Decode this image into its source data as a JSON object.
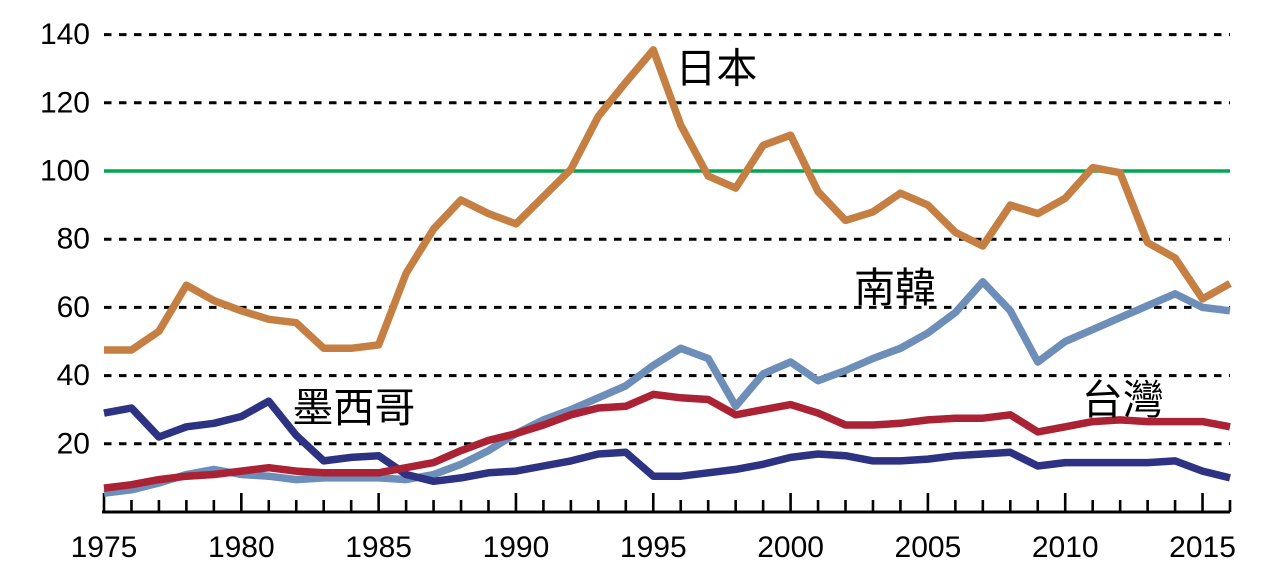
{
  "chart_data": {
    "type": "line",
    "background": "#FFFFFF",
    "axis_color": "#000000",
    "grid": "horizontal-dashed",
    "xlim": [
      1975,
      2016
    ],
    "ylim": [
      0,
      148
    ],
    "yticks": [
      20,
      40,
      60,
      80,
      100,
      120,
      140
    ],
    "xticks_labeled": [
      1975,
      1980,
      1985,
      1990,
      1995,
      2000,
      2005,
      2010,
      2015
    ],
    "xticks_minor_every": 1,
    "reference_line": {
      "value": 100,
      "color": "#00A651"
    },
    "x": [
      1975,
      1976,
      1977,
      1978,
      1979,
      1980,
      1981,
      1982,
      1983,
      1984,
      1985,
      1986,
      1987,
      1988,
      1989,
      1990,
      1991,
      1992,
      1993,
      1994,
      1995,
      1996,
      1997,
      1998,
      1999,
      2000,
      2001,
      2002,
      2003,
      2004,
      2005,
      2006,
      2007,
      2008,
      2009,
      2010,
      2011,
      2012,
      2013,
      2014,
      2015,
      2016
    ],
    "series": [
      {
        "id": "south-korea",
        "label": "南韓",
        "color": "#6C8EB9",
        "values": [
          5.5,
          6.5,
          8.5,
          11,
          12.5,
          11,
          10.5,
          9.5,
          10,
          10,
          10,
          9.5,
          11,
          14,
          18,
          23,
          27,
          30,
          33.5,
          37,
          43,
          48,
          45,
          31,
          40.5,
          44,
          38.5,
          41.5,
          45,
          48,
          52.5,
          58.5,
          67.5,
          59,
          44,
          50,
          53.5,
          57,
          60.5,
          64,
          60,
          59
        ]
      },
      {
        "id": "mexico",
        "label": "墨西哥",
        "color": "#2E3282",
        "values": [
          29,
          30.5,
          22,
          25,
          26,
          28,
          32.5,
          22.5,
          15,
          16,
          16.5,
          11,
          9,
          10,
          11.5,
          12,
          13.5,
          15,
          17,
          17.5,
          10.5,
          10.5,
          11.5,
          12.5,
          14,
          16,
          17,
          16.5,
          15,
          15,
          15.5,
          16.5,
          17,
          17.5,
          13.5,
          14.5,
          14.5,
          14.5,
          14.5,
          15,
          12,
          10
        ]
      },
      {
        "id": "taiwan",
        "label": "台灣",
        "color": "#AA2233",
        "values": [
          7,
          8,
          9.5,
          10.5,
          11,
          12,
          13,
          12,
          11.5,
          11.5,
          11.5,
          13,
          14.5,
          18,
          21,
          23,
          25.5,
          28.5,
          30.5,
          31,
          34.5,
          33.5,
          33,
          28.5,
          30,
          31.5,
          29,
          25.5,
          25.5,
          26,
          27,
          27.5,
          27.5,
          28.5,
          23.5,
          25,
          26.5,
          27,
          26.5,
          26.5,
          26.5,
          25
        ]
      },
      {
        "id": "japan",
        "label": "日本",
        "color": "#C67F43",
        "values": [
          47.5,
          47.5,
          53,
          66.5,
          62,
          59,
          56.5,
          55.5,
          48,
          48,
          49,
          70,
          83,
          91.5,
          87.5,
          84.5,
          92.5,
          100.5,
          116,
          126,
          135.5,
          113.5,
          98.5,
          95,
          107.5,
          110.5,
          94,
          85.5,
          88,
          93.5,
          90,
          82,
          78,
          90,
          87.5,
          92,
          101,
          99.5,
          79,
          74.5,
          62.5,
          67
        ]
      }
    ],
    "series_labels": [
      {
        "series": "japan",
        "text": "日本",
        "at": {
          "year": 1997.3,
          "value": 130
        }
      },
      {
        "series": "south-korea",
        "text": "南韓",
        "at": {
          "year": 2003.8,
          "value": 65.7
        }
      },
      {
        "series": "taiwan",
        "text": "台灣",
        "at": {
          "year": 2012.1,
          "value": 32.8
        }
      },
      {
        "series": "mexico",
        "text": "墨西哥",
        "at": {
          "year": 1984.1,
          "value": 30.5
        }
      }
    ]
  }
}
